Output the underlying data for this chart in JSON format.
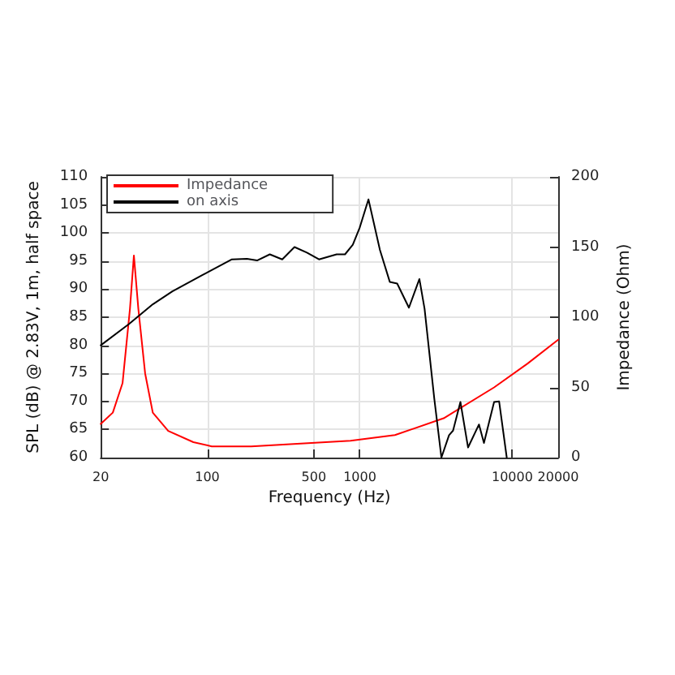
{
  "chart_data": {
    "type": "line",
    "xlabel": "Frequency (Hz)",
    "ylabel": "SPL (dB) @ 2.83V, 1m, half space",
    "y2label": "Impedance (Ohm)",
    "log": "x",
    "xlim": [
      20,
      20000
    ],
    "xticks": [
      20,
      100,
      500,
      1000,
      10000,
      20000
    ],
    "ylim": [
      60,
      110
    ],
    "yticks": [
      60,
      65,
      70,
      75,
      80,
      85,
      90,
      95,
      100,
      105,
      110
    ],
    "y2lim": [
      0,
      200
    ],
    "y2ticks": [
      0,
      50,
      100,
      150,
      200
    ],
    "grid": true,
    "legend": "top left",
    "marker": "none",
    "line_style": "solid",
    "series": [
      {
        "name": "Impedance",
        "color": "#ff0000",
        "axis": "y2",
        "x": [
          20,
          24,
          27.8,
          31.1,
          33,
          35.3,
          39.1,
          43.9,
          55.4,
          81,
          107,
          194,
          410,
          870,
          1700,
          3550,
          7600,
          12600,
          20000
        ],
        "values": [
          24,
          32,
          53,
          106,
          144,
          106,
          60,
          32,
          19,
          11,
          8,
          8,
          10,
          12,
          16,
          28,
          50,
          67,
          84
        ]
      },
      {
        "name": "on axis",
        "color": "#000000",
        "x": [
          20,
          30.7,
          43.9,
          59,
          92.6,
          145,
          182,
          212,
          257,
          310,
          373,
          450,
          540,
          705,
          800,
          900,
          1000,
          1140,
          1355,
          1573,
          1759,
          2100,
          2460,
          2660,
          3080,
          3430,
          3850,
          4090,
          4570,
          5130,
          6050,
          6520,
          7600,
          8200,
          9200
        ],
        "values": [
          80,
          83.8,
          87.3,
          89.6,
          92.5,
          95.3,
          95.4,
          95.1,
          96.2,
          95.3,
          97.5,
          96.5,
          95.3,
          96.2,
          96.2,
          97.9,
          101,
          106,
          97,
          91.3,
          91,
          86.7,
          91.8,
          86.5,
          70.5,
          60,
          64,
          64.8,
          69.9,
          61.8,
          65.9,
          62.6,
          69.9,
          70,
          60
        ]
      }
    ]
  }
}
